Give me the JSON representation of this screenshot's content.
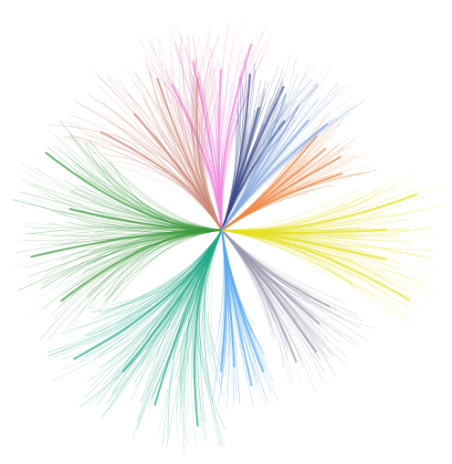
{
  "diagram": {
    "type": "radial edge-bundled tree",
    "background": "#ffffff",
    "clusters": [
      {
        "name": "pink-cluster",
        "color": "#ee88dd"
      },
      {
        "name": "salmon-cluster",
        "color": "#cc8877"
      },
      {
        "name": "green-cluster",
        "color": "#3d9a3d"
      },
      {
        "name": "teal-cluster",
        "color": "#22aa88"
      },
      {
        "name": "blue-cluster",
        "color": "#5aaaf0"
      },
      {
        "name": "gray-cluster",
        "color": "#9a9aae"
      },
      {
        "name": "yellow-cluster",
        "color": "#e6e020"
      },
      {
        "name": "orange-cluster",
        "color": "#ee8844"
      },
      {
        "name": "navy-cluster",
        "color": "#3a4a8a"
      },
      {
        "name": "lightblue-cluster",
        "color": "#88aadd"
      }
    ]
  }
}
